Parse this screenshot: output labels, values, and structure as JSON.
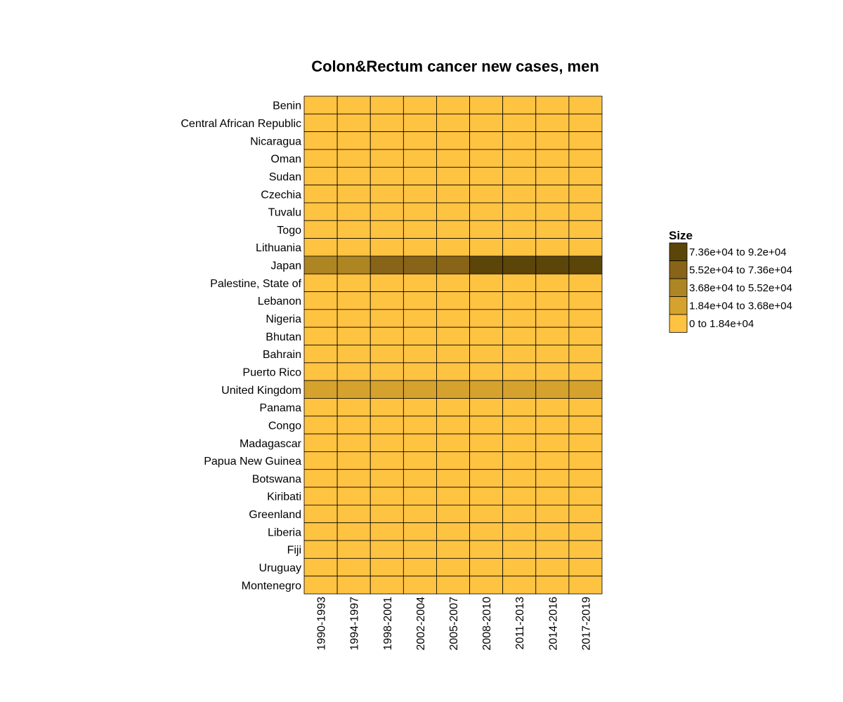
{
  "chart_data": {
    "type": "heatmap",
    "title": "Colon&Rectum cancer new cases, men",
    "x": [
      "1990-1993",
      "1994-1997",
      "1998-2001",
      "2002-2004",
      "2005-2007",
      "2008-2010",
      "2011-2013",
      "2014-2016",
      "2017-2019"
    ],
    "y": [
      "Benin",
      "Central African Republic",
      "Nicaragua",
      "Oman",
      "Sudan",
      "Czechia",
      "Tuvalu",
      "Togo",
      "Lithuania",
      "Japan",
      "Palestine, State of",
      "Lebanon",
      "Nigeria",
      "Bhutan",
      "Bahrain",
      "Puerto Rico",
      "United Kingdom",
      "Panama",
      "Congo",
      "Madagascar",
      "Papua New Guinea",
      "Botswana",
      "Kiribati",
      "Greenland",
      "Liberia",
      "Fiji",
      "Uruguay",
      "Montenegro"
    ],
    "bin_matrix": [
      [
        0,
        0,
        0,
        0,
        0,
        0,
        0,
        0,
        0
      ],
      [
        0,
        0,
        0,
        0,
        0,
        0,
        0,
        0,
        0
      ],
      [
        0,
        0,
        0,
        0,
        0,
        0,
        0,
        0,
        0
      ],
      [
        0,
        0,
        0,
        0,
        0,
        0,
        0,
        0,
        0
      ],
      [
        0,
        0,
        0,
        0,
        0,
        0,
        0,
        0,
        0
      ],
      [
        0,
        0,
        0,
        0,
        0,
        0,
        0,
        0,
        0
      ],
      [
        0,
        0,
        0,
        0,
        0,
        0,
        0,
        0,
        0
      ],
      [
        0,
        0,
        0,
        0,
        0,
        0,
        0,
        0,
        0
      ],
      [
        0,
        0,
        0,
        0,
        0,
        0,
        0,
        0,
        0
      ],
      [
        2,
        2,
        3,
        3,
        3,
        4,
        4,
        4,
        4
      ],
      [
        0,
        0,
        0,
        0,
        0,
        0,
        0,
        0,
        0
      ],
      [
        0,
        0,
        0,
        0,
        0,
        0,
        0,
        0,
        0
      ],
      [
        0,
        0,
        0,
        0,
        0,
        0,
        0,
        0,
        0
      ],
      [
        0,
        0,
        0,
        0,
        0,
        0,
        0,
        0,
        0
      ],
      [
        0,
        0,
        0,
        0,
        0,
        0,
        0,
        0,
        0
      ],
      [
        0,
        0,
        0,
        0,
        0,
        0,
        0,
        0,
        0
      ],
      [
        1,
        1,
        1,
        1,
        1,
        1,
        1,
        1,
        1
      ],
      [
        0,
        0,
        0,
        0,
        0,
        0,
        0,
        0,
        0
      ],
      [
        0,
        0,
        0,
        0,
        0,
        0,
        0,
        0,
        0
      ],
      [
        0,
        0,
        0,
        0,
        0,
        0,
        0,
        0,
        0
      ],
      [
        0,
        0,
        0,
        0,
        0,
        0,
        0,
        0,
        0
      ],
      [
        0,
        0,
        0,
        0,
        0,
        0,
        0,
        0,
        0
      ],
      [
        0,
        0,
        0,
        0,
        0,
        0,
        0,
        0,
        0
      ],
      [
        0,
        0,
        0,
        0,
        0,
        0,
        0,
        0,
        0
      ],
      [
        0,
        0,
        0,
        0,
        0,
        0,
        0,
        0,
        0
      ],
      [
        0,
        0,
        0,
        0,
        0,
        0,
        0,
        0,
        0
      ],
      [
        0,
        0,
        0,
        0,
        0,
        0,
        0,
        0,
        0
      ],
      [
        0,
        0,
        0,
        0,
        0,
        0,
        0,
        0,
        0
      ]
    ],
    "legend": {
      "title": "Size",
      "placement": "right",
      "bins": [
        {
          "label": "0 to 1.84e+04",
          "color": "#FFC342"
        },
        {
          "label": "1.84e+04 to 3.68e+04",
          "color": "#D6A22E"
        },
        {
          "label": "3.68e+04 to 5.52e+04",
          "color": "#AD8523"
        },
        {
          "label": "5.52e+04 to 7.36e+04",
          "color": "#876417"
        },
        {
          "label": "7.36e+04 to 9.2e+04",
          "color": "#5C4508"
        }
      ]
    },
    "grid": false
  }
}
